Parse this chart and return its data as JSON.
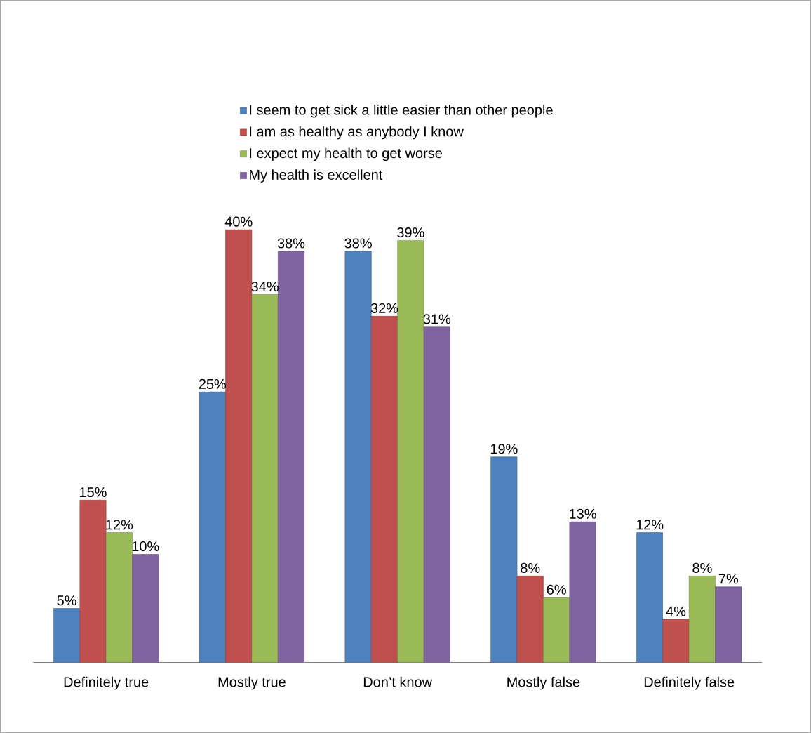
{
  "chart_data": {
    "type": "bar",
    "categories": [
      "Definitely true",
      "Mostly true",
      "Don’t know",
      "Mostly false",
      "Definitely false"
    ],
    "legend": "top",
    "series": [
      {
        "name": "I seem to get sick a little easier than other people",
        "color": "#4f81bd",
        "values": [
          5,
          25,
          38,
          19,
          12
        ],
        "value_labels": [
          "5%",
          "25%",
          "38%",
          "19%",
          "12%"
        ]
      },
      {
        "name": "I am as healthy as anybody I know",
        "color": "#c0504d",
        "values": [
          15,
          40,
          32,
          8,
          4
        ],
        "value_labels": [
          "15%",
          "40%",
          "32%",
          "8%",
          "4%"
        ]
      },
      {
        "name": "I expect my health to get worse",
        "color": "#9bbb59",
        "values": [
          12,
          34,
          39,
          6,
          8
        ],
        "value_labels": [
          "12%",
          "34%",
          "39%",
          "6%",
          "8%"
        ]
      },
      {
        "name": "My health is excellent",
        "color": "#8064a2",
        "values": [
          10,
          38,
          31,
          13,
          7
        ],
        "value_labels": [
          "10%",
          "38%",
          "31%",
          "13%",
          "7%"
        ]
      }
    ]
  }
}
